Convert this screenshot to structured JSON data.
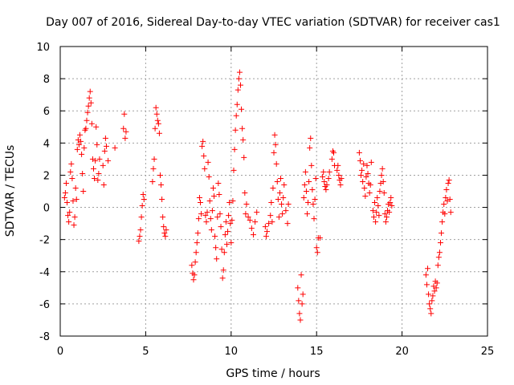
{
  "chart_data": {
    "type": "scatter",
    "title": "Day 007 of 2016, Sidereal Day-to-day VTEC variation (SDTVAR) for receiver cas1",
    "xlabel": "GPS time / hours",
    "ylabel": "SDTVAR / TECUs",
    "xlim": [
      0,
      25
    ],
    "ylim": [
      -8,
      10
    ],
    "xticks": [
      0,
      5,
      10,
      15,
      20,
      25
    ],
    "yticks": [
      -8,
      -6,
      -4,
      -2,
      0,
      2,
      4,
      6,
      8,
      10
    ],
    "x_tick_labels": [
      "0",
      "5",
      "10",
      "15",
      "20",
      "25"
    ],
    "y_tick_labels": [
      "-8",
      "-6",
      "-4",
      "-2",
      "0",
      "2",
      "4",
      "6",
      "8",
      "10"
    ],
    "grid": true,
    "marker": "+",
    "color": "#ff0000",
    "series": [
      {
        "name": "cas1",
        "points": [
          [
            0.25,
            0.6
          ],
          [
            0.3,
            0.9
          ],
          [
            0.35,
            1.5
          ],
          [
            0.4,
            0.3
          ],
          [
            0.45,
            -0.5
          ],
          [
            0.5,
            -0.9
          ],
          [
            0.55,
            -0.3
          ],
          [
            0.6,
            2.2
          ],
          [
            0.65,
            2.7
          ],
          [
            0.7,
            1.8
          ],
          [
            0.75,
            0.4
          ],
          [
            0.8,
            -1.1
          ],
          [
            0.85,
            -0.6
          ],
          [
            0.9,
            1.2
          ],
          [
            0.95,
            0.5
          ],
          [
            1.0,
            3.6
          ],
          [
            1.05,
            4.2
          ],
          [
            1.1,
            3.9
          ],
          [
            1.15,
            4.5
          ],
          [
            1.2,
            4.1
          ],
          [
            1.25,
            3.3
          ],
          [
            1.3,
            2.1
          ],
          [
            1.35,
            1.0
          ],
          [
            1.4,
            3.7
          ],
          [
            1.45,
            4.8
          ],
          [
            1.5,
            4.9
          ],
          [
            1.55,
            5.4
          ],
          [
            1.6,
            5.9
          ],
          [
            1.65,
            6.3
          ],
          [
            1.7,
            6.8
          ],
          [
            1.75,
            7.2
          ],
          [
            1.8,
            6.5
          ],
          [
            1.85,
            5.2
          ],
          [
            1.9,
            3.0
          ],
          [
            1.95,
            2.4
          ],
          [
            2.0,
            1.8
          ],
          [
            2.05,
            2.9
          ],
          [
            2.1,
            5.0
          ],
          [
            2.15,
            3.9
          ],
          [
            2.2,
            1.7
          ],
          [
            2.25,
            2.1
          ],
          [
            2.3,
            3.0
          ],
          [
            2.5,
            2.6
          ],
          [
            2.55,
            1.4
          ],
          [
            2.6,
            3.5
          ],
          [
            2.65,
            4.3
          ],
          [
            2.7,
            3.8
          ],
          [
            2.8,
            2.9
          ],
          [
            3.2,
            3.7
          ],
          [
            3.7,
            4.9
          ],
          [
            3.75,
            5.8
          ],
          [
            3.8,
            4.3
          ],
          [
            3.85,
            4.7
          ],
          [
            4.6,
            -2.1
          ],
          [
            4.65,
            -1.8
          ],
          [
            4.7,
            -1.4
          ],
          [
            4.75,
            -0.6
          ],
          [
            4.8,
            0.1
          ],
          [
            4.85,
            0.8
          ],
          [
            4.9,
            0.5
          ],
          [
            5.4,
            1.6
          ],
          [
            5.45,
            2.4
          ],
          [
            5.5,
            3.0
          ],
          [
            5.55,
            4.9
          ],
          [
            5.6,
            6.2
          ],
          [
            5.65,
            5.8
          ],
          [
            5.7,
            5.4
          ],
          [
            5.75,
            5.2
          ],
          [
            5.8,
            4.6
          ],
          [
            5.85,
            2.0
          ],
          [
            5.9,
            1.4
          ],
          [
            5.95,
            0.5
          ],
          [
            6.0,
            -0.6
          ],
          [
            6.05,
            -1.2
          ],
          [
            6.1,
            -1.6
          ],
          [
            6.15,
            -1.8
          ],
          [
            6.2,
            -1.4
          ],
          [
            7.7,
            -3.6
          ],
          [
            7.75,
            -4.1
          ],
          [
            7.8,
            -4.5
          ],
          [
            7.85,
            -4.2
          ],
          [
            7.9,
            -3.4
          ],
          [
            7.95,
            -2.8
          ],
          [
            8.0,
            -2.2
          ],
          [
            8.05,
            -1.6
          ],
          [
            8.1,
            -0.7
          ],
          [
            8.15,
            0.6
          ],
          [
            8.2,
            0.3
          ],
          [
            8.25,
            -0.4
          ],
          [
            8.3,
            3.8
          ],
          [
            8.35,
            4.1
          ],
          [
            8.4,
            3.2
          ],
          [
            8.45,
            2.4
          ],
          [
            8.5,
            -0.5
          ],
          [
            8.55,
            -0.9
          ],
          [
            8.6,
            -0.3
          ],
          [
            8.65,
            2.8
          ],
          [
            8.7,
            1.9
          ],
          [
            8.75,
            0.4
          ],
          [
            8.8,
            -0.7
          ],
          [
            8.85,
            -1.4
          ],
          [
            8.9,
            -0.2
          ],
          [
            8.95,
            1.2
          ],
          [
            9.0,
            0.7
          ],
          [
            9.05,
            -1.8
          ],
          [
            9.1,
            -2.5
          ],
          [
            9.15,
            -3.2
          ],
          [
            9.2,
            -0.6
          ],
          [
            9.25,
            1.5
          ],
          [
            9.3,
            0.8
          ],
          [
            9.35,
            -0.4
          ],
          [
            9.4,
            -1.2
          ],
          [
            9.45,
            -2.6
          ],
          [
            9.5,
            -4.4
          ],
          [
            9.55,
            -3.9
          ],
          [
            9.6,
            -2.8
          ],
          [
            9.65,
            -1.7
          ],
          [
            9.7,
            -0.9
          ],
          [
            9.75,
            -2.3
          ],
          [
            9.8,
            -1.5
          ],
          [
            9.85,
            -0.5
          ],
          [
            9.9,
            0.3
          ],
          [
            9.95,
            -1.0
          ],
          [
            10.0,
            -2.2
          ],
          [
            10.05,
            -0.8
          ],
          [
            10.1,
            0.4
          ],
          [
            10.15,
            2.3
          ],
          [
            10.2,
            3.6
          ],
          [
            10.25,
            4.8
          ],
          [
            10.3,
            5.7
          ],
          [
            10.35,
            6.4
          ],
          [
            10.4,
            7.3
          ],
          [
            10.45,
            8.0
          ],
          [
            10.5,
            8.4
          ],
          [
            10.55,
            7.6
          ],
          [
            10.6,
            6.1
          ],
          [
            10.65,
            4.9
          ],
          [
            10.7,
            4.2
          ],
          [
            10.75,
            3.1
          ],
          [
            10.8,
            0.9
          ],
          [
            10.85,
            -0.4
          ],
          [
            10.9,
            0.2
          ],
          [
            11.0,
            -0.6
          ],
          [
            11.1,
            -0.8
          ],
          [
            11.2,
            -1.3
          ],
          [
            11.3,
            -1.7
          ],
          [
            11.4,
            -0.9
          ],
          [
            11.5,
            -0.3
          ],
          [
            12.0,
            -1.2
          ],
          [
            12.05,
            -1.8
          ],
          [
            12.1,
            -1.5
          ],
          [
            12.2,
            -1.0
          ],
          [
            12.3,
            -0.5
          ],
          [
            12.35,
            0.3
          ],
          [
            12.4,
            -0.9
          ],
          [
            12.45,
            1.2
          ],
          [
            12.5,
            3.4
          ],
          [
            12.55,
            4.5
          ],
          [
            12.6,
            3.9
          ],
          [
            12.65,
            2.7
          ],
          [
            12.7,
            1.6
          ],
          [
            12.75,
            0.5
          ],
          [
            12.8,
            -0.6
          ],
          [
            12.85,
            0.9
          ],
          [
            12.9,
            1.8
          ],
          [
            12.95,
            0.2
          ],
          [
            13.0,
            -0.4
          ],
          [
            13.05,
            0.6
          ],
          [
            13.1,
            1.4
          ],
          [
            13.2,
            -0.2
          ],
          [
            13.3,
            -1.0
          ],
          [
            13.35,
            0.2
          ],
          [
            13.9,
            -5.0
          ],
          [
            13.95,
            -5.8
          ],
          [
            14.0,
            -6.6
          ],
          [
            14.05,
            -7.0
          ],
          [
            14.1,
            -4.2
          ],
          [
            14.15,
            -6.0
          ],
          [
            14.2,
            -5.4
          ],
          [
            14.25,
            0.6
          ],
          [
            14.3,
            1.4
          ],
          [
            14.35,
            2.2
          ],
          [
            14.4,
            1.0
          ],
          [
            14.45,
            -0.4
          ],
          [
            14.5,
            0.3
          ],
          [
            14.55,
            1.6
          ],
          [
            14.6,
            3.7
          ],
          [
            14.65,
            4.3
          ],
          [
            14.7,
            2.6
          ],
          [
            14.75,
            1.1
          ],
          [
            14.8,
            0.2
          ],
          [
            14.85,
            -0.7
          ],
          [
            14.9,
            0.5
          ],
          [
            14.95,
            1.8
          ],
          [
            15.0,
            -2.5
          ],
          [
            15.05,
            -2.8
          ],
          [
            15.1,
            -1.9
          ],
          [
            15.2,
            -1.9
          ],
          [
            15.35,
            1.9
          ],
          [
            15.4,
            2.2
          ],
          [
            15.45,
            1.6
          ],
          [
            15.5,
            1.3
          ],
          [
            15.55,
            1.1
          ],
          [
            15.6,
            1.4
          ],
          [
            15.7,
            1.8
          ],
          [
            15.75,
            2.2
          ],
          [
            15.9,
            3.0
          ],
          [
            15.95,
            3.5
          ],
          [
            16.0,
            3.4
          ],
          [
            16.05,
            2.6
          ],
          [
            16.2,
            2.3
          ],
          [
            16.25,
            2.6
          ],
          [
            16.3,
            2.0
          ],
          [
            16.35,
            1.7
          ],
          [
            16.4,
            1.4
          ],
          [
            16.45,
            1.8
          ],
          [
            17.5,
            3.4
          ],
          [
            17.55,
            2.9
          ],
          [
            17.6,
            2.0
          ],
          [
            17.65,
            2.3
          ],
          [
            17.7,
            1.6
          ],
          [
            17.75,
            2.7
          ],
          [
            17.8,
            1.2
          ],
          [
            17.85,
            0.7
          ],
          [
            17.9,
            1.9
          ],
          [
            17.95,
            2.6
          ],
          [
            18.0,
            2.1
          ],
          [
            18.05,
            1.5
          ],
          [
            18.1,
            0.9
          ],
          [
            18.15,
            1.4
          ],
          [
            18.2,
            2.8
          ],
          [
            18.3,
            -0.2
          ],
          [
            18.35,
            -0.6
          ],
          [
            18.4,
            0.3
          ],
          [
            18.45,
            -0.9
          ],
          [
            18.5,
            -0.3
          ],
          [
            18.55,
            0.6
          ],
          [
            18.6,
            0.1
          ],
          [
            18.65,
            -0.5
          ],
          [
            18.7,
            1.0
          ],
          [
            18.75,
            1.5
          ],
          [
            18.8,
            2.0
          ],
          [
            18.85,
            2.4
          ],
          [
            18.9,
            1.6
          ],
          [
            18.95,
            0.9
          ],
          [
            19.0,
            -0.4
          ],
          [
            19.05,
            -0.9
          ],
          [
            19.1,
            -0.6
          ],
          [
            19.15,
            -0.2
          ],
          [
            19.2,
            0.2
          ],
          [
            19.25,
            -0.3
          ],
          [
            19.3,
            0.3
          ],
          [
            19.35,
            0.6
          ],
          [
            19.4,
            0.1
          ],
          [
            21.4,
            -4.2
          ],
          [
            21.45,
            -4.8
          ],
          [
            21.5,
            -3.8
          ],
          [
            21.55,
            -5.4
          ],
          [
            21.6,
            -6.0
          ],
          [
            21.65,
            -6.3
          ],
          [
            21.7,
            -6.6
          ],
          [
            21.75,
            -5.8
          ],
          [
            21.8,
            -5.5
          ],
          [
            21.85,
            -4.9
          ],
          [
            21.9,
            -5.2
          ],
          [
            21.95,
            -4.6
          ],
          [
            22.0,
            -5.0
          ],
          [
            22.05,
            -4.7
          ],
          [
            22.1,
            -3.6
          ],
          [
            22.15,
            -3.1
          ],
          [
            22.2,
            -2.8
          ],
          [
            22.25,
            -2.2
          ],
          [
            22.3,
            -1.6
          ],
          [
            22.35,
            -0.9
          ],
          [
            22.4,
            -0.3
          ],
          [
            22.45,
            0.2
          ],
          [
            22.5,
            -0.4
          ],
          [
            22.55,
            0.6
          ],
          [
            22.6,
            1.1
          ],
          [
            22.65,
            0.4
          ],
          [
            22.7,
            1.5
          ],
          [
            22.75,
            1.7
          ],
          [
            22.8,
            0.5
          ],
          [
            22.85,
            -0.3
          ]
        ]
      }
    ]
  }
}
